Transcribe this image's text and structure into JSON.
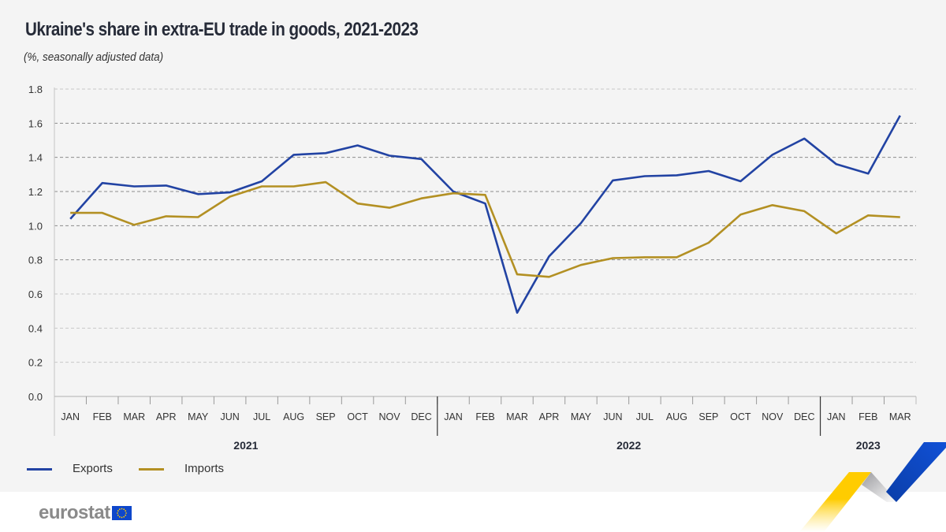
{
  "header": {
    "title": "Ukraine's share in extra-EU trade in goods, 2021-2023",
    "subtitle": "(%, seasonally adjusted data)"
  },
  "footer": {
    "logo_text": "eurostat",
    "logo_icon": "eu-flag-icon"
  },
  "colors": {
    "exports": "#2243a3",
    "imports": "#b39023",
    "background": "#f4f4f4",
    "deco_blue": "#0e47cb",
    "deco_yellow": "#ffcc00"
  },
  "chart_data": {
    "type": "line",
    "title": "Ukraine's share in extra-EU trade in goods, 2021-2023",
    "subtitle": "(%, seasonally adjusted data)",
    "xlabel": "",
    "ylabel": "",
    "ylim": [
      0,
      1.8
    ],
    "yticks": [
      "0.0",
      "0.2",
      "0.4",
      "0.6",
      "0.8",
      "1.0",
      "1.2",
      "1.4",
      "1.6",
      "1.8"
    ],
    "grid": true,
    "legend_position": "bottom-left",
    "categories": [
      "JAN",
      "FEB",
      "MAR",
      "APR",
      "MAY",
      "JUN",
      "JUL",
      "AUG",
      "SEP",
      "OCT",
      "NOV",
      "DEC",
      "JAN",
      "FEB",
      "MAR",
      "APR",
      "MAY",
      "JUN",
      "JUL",
      "AUG",
      "SEP",
      "OCT",
      "NOV",
      "DEC",
      "JAN",
      "FEB",
      "MAR"
    ],
    "year_groups": [
      {
        "label": "2021",
        "count": 12
      },
      {
        "label": "2022",
        "count": 12
      },
      {
        "label": "2023",
        "count": 3
      }
    ],
    "series": [
      {
        "name": "Exports",
        "color": "#2243a3",
        "values": [
          1.04,
          1.25,
          1.23,
          1.235,
          1.185,
          1.195,
          1.26,
          1.415,
          1.425,
          1.47,
          1.41,
          1.39,
          1.2,
          1.13,
          0.49,
          0.82,
          1.015,
          1.265,
          1.29,
          1.295,
          1.32,
          1.26,
          1.415,
          1.51,
          1.36,
          1.305,
          1.645
        ]
      },
      {
        "name": "Imports",
        "color": "#b39023",
        "values": [
          1.075,
          1.075,
          1.005,
          1.055,
          1.05,
          1.17,
          1.23,
          1.23,
          1.255,
          1.13,
          1.105,
          1.16,
          1.19,
          1.18,
          0.715,
          0.7,
          0.77,
          0.81,
          0.815,
          0.815,
          0.9,
          1.065,
          1.12,
          1.085,
          0.955,
          1.06,
          1.05
        ]
      }
    ]
  }
}
